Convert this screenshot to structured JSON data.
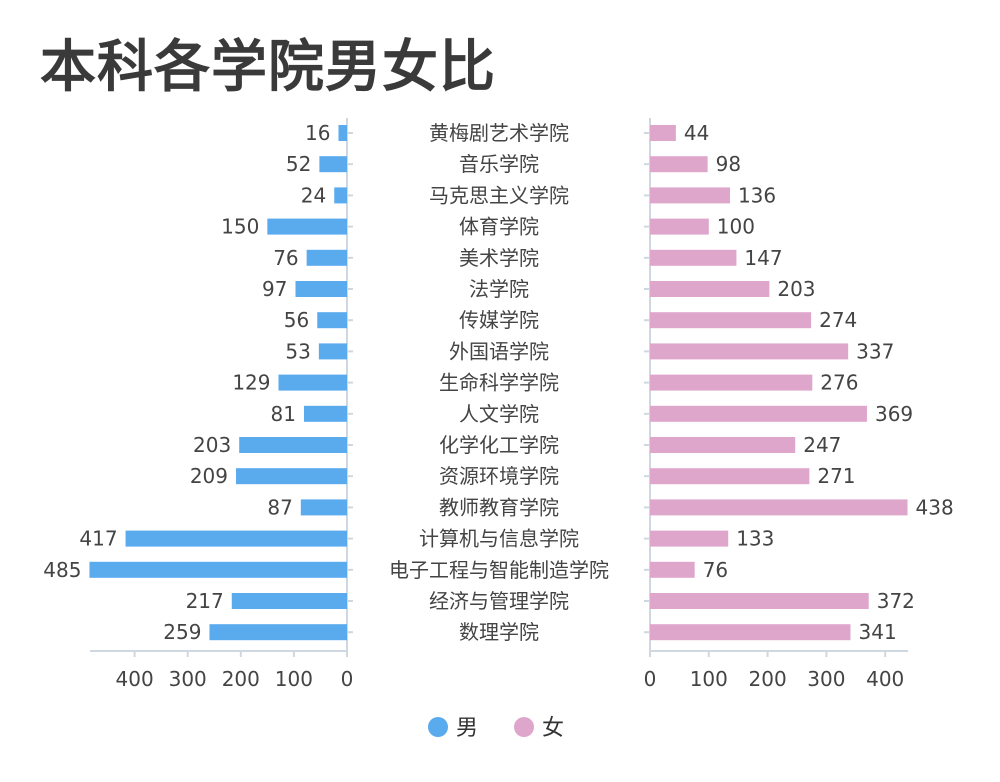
{
  "title": "本科各学院男女比",
  "chart_data": {
    "type": "bar",
    "orientation": "horizontal",
    "layout": "butterfly",
    "title": "本科各学院男女比",
    "categories": [
      "黄梅剧艺术学院",
      "音乐学院",
      "马克思主义学院",
      "体育学院",
      "美术学院",
      "法学院",
      "传媒学院",
      "外国语学院",
      "生命科学学院",
      "人文学院",
      "化学化工学院",
      "资源环境学院",
      "教师教育学院",
      "计算机与信息学院",
      "电子工程与智能制造学院",
      "经济与管理学院",
      "数理学院"
    ],
    "series": [
      {
        "name": "男",
        "side": "left",
        "color": "#5aaaee",
        "values": [
          16,
          52,
          24,
          150,
          76,
          97,
          56,
          53,
          129,
          81,
          203,
          209,
          87,
          417,
          485,
          217,
          259
        ]
      },
      {
        "name": "女",
        "side": "right",
        "color": "#dfa6cc",
        "values": [
          44,
          98,
          136,
          100,
          147,
          203,
          274,
          337,
          276,
          369,
          247,
          271,
          438,
          133,
          76,
          372,
          341
        ]
      }
    ],
    "left_axis": {
      "ticks": [
        400,
        300,
        200,
        100,
        0
      ],
      "tick_labels": [
        "400",
        "300",
        "200",
        "100",
        "0"
      ],
      "range": [
        0,
        485
      ]
    },
    "right_axis": {
      "ticks": [
        0,
        100,
        200,
        300,
        400
      ],
      "tick_labels": [
        "0",
        "100",
        "200",
        "300",
        "400"
      ],
      "range": [
        0,
        438
      ]
    },
    "grid": false,
    "legend": {
      "position": "bottom-center",
      "items": [
        "男",
        "女"
      ]
    }
  }
}
